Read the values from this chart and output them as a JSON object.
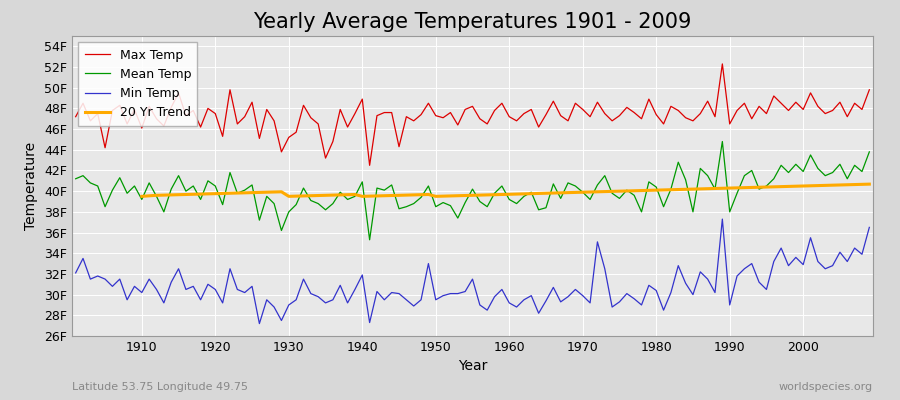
{
  "title": "Yearly Average Temperatures 1901 - 2009",
  "xlabel": "Year",
  "ylabel": "Temperature",
  "year_start": 1901,
  "year_end": 2009,
  "ylim": [
    26,
    55
  ],
  "yticks": [
    26,
    28,
    30,
    32,
    34,
    36,
    38,
    40,
    42,
    44,
    46,
    48,
    50,
    52,
    54
  ],
  "ytick_labels": [
    "26F",
    "28F",
    "30F",
    "32F",
    "34F",
    "36F",
    "38F",
    "40F",
    "42F",
    "44F",
    "46F",
    "48F",
    "50F",
    "52F",
    "54F"
  ],
  "max_temp": [
    47.2,
    48.5,
    46.8,
    47.5,
    44.2,
    47.8,
    48.3,
    46.5,
    47.9,
    46.1,
    48.2,
    47.0,
    46.3,
    48.1,
    49.5,
    47.3,
    47.8,
    46.2,
    48.0,
    47.5,
    45.3,
    49.8,
    46.5,
    47.2,
    48.6,
    45.1,
    47.9,
    46.8,
    43.8,
    45.2,
    45.7,
    48.3,
    47.1,
    46.5,
    43.2,
    44.8,
    47.9,
    46.2,
    47.5,
    48.9,
    42.5,
    47.3,
    47.6,
    47.6,
    44.3,
    47.2,
    46.8,
    47.4,
    48.5,
    47.3,
    47.1,
    47.6,
    46.4,
    47.9,
    48.2,
    47.0,
    46.5,
    47.8,
    48.5,
    47.2,
    46.8,
    47.5,
    47.9,
    46.2,
    47.4,
    48.7,
    47.3,
    46.8,
    48.5,
    47.9,
    47.2,
    48.6,
    47.5,
    46.8,
    47.3,
    48.1,
    47.6,
    47.0,
    48.9,
    47.4,
    46.5,
    48.2,
    47.8,
    47.1,
    46.8,
    47.5,
    48.7,
    47.2,
    52.3,
    46.5,
    47.8,
    48.5,
    47.0,
    48.2,
    47.5,
    49.2,
    48.5,
    47.8,
    48.6,
    47.9,
    49.5,
    48.2,
    47.5,
    47.8,
    48.6,
    47.2,
    48.5,
    47.9,
    49.8
  ],
  "mean_temp": [
    41.2,
    41.5,
    40.8,
    40.5,
    38.5,
    40.1,
    41.3,
    39.8,
    40.5,
    39.2,
    40.8,
    39.5,
    38.0,
    40.2,
    41.5,
    40.0,
    40.5,
    39.2,
    41.0,
    40.5,
    38.7,
    41.8,
    39.8,
    40.1,
    40.6,
    37.2,
    39.5,
    38.8,
    36.2,
    38.0,
    38.7,
    40.3,
    39.1,
    38.8,
    38.2,
    38.8,
    39.9,
    39.2,
    39.5,
    40.9,
    35.3,
    40.3,
    40.1,
    40.6,
    38.3,
    38.5,
    38.8,
    39.4,
    40.5,
    38.5,
    38.9,
    38.6,
    37.4,
    38.9,
    40.2,
    39.0,
    38.5,
    39.8,
    40.5,
    39.2,
    38.8,
    39.5,
    39.9,
    38.2,
    38.4,
    40.7,
    39.3,
    40.8,
    40.5,
    39.9,
    39.2,
    40.6,
    41.5,
    39.8,
    39.3,
    40.1,
    39.6,
    38.0,
    40.9,
    40.4,
    38.5,
    40.2,
    42.8,
    41.1,
    38.0,
    42.2,
    41.5,
    40.2,
    44.8,
    38.0,
    39.8,
    41.5,
    42.0,
    40.2,
    40.5,
    41.2,
    42.5,
    41.8,
    42.6,
    41.9,
    43.5,
    42.2,
    41.5,
    41.8,
    42.6,
    41.2,
    42.5,
    41.9,
    43.8
  ],
  "min_temp": [
    32.1,
    33.5,
    31.5,
    31.8,
    31.5,
    30.8,
    31.5,
    29.5,
    30.8,
    30.2,
    31.5,
    30.5,
    29.2,
    31.2,
    32.5,
    30.5,
    30.8,
    29.5,
    31.0,
    30.5,
    29.2,
    32.5,
    30.5,
    30.2,
    30.8,
    27.2,
    29.5,
    28.8,
    27.5,
    29.0,
    29.5,
    31.5,
    30.1,
    29.8,
    29.2,
    29.5,
    30.9,
    29.2,
    30.5,
    31.9,
    27.3,
    30.3,
    29.5,
    30.2,
    30.1,
    29.5,
    28.9,
    29.5,
    33.0,
    29.5,
    29.9,
    30.1,
    30.1,
    30.3,
    31.5,
    29.0,
    28.5,
    29.8,
    30.5,
    29.2,
    28.8,
    29.5,
    29.9,
    28.2,
    29.4,
    30.7,
    29.3,
    29.8,
    30.5,
    29.9,
    29.2,
    35.1,
    32.5,
    28.8,
    29.3,
    30.1,
    29.6,
    29.0,
    30.9,
    30.4,
    28.5,
    30.2,
    32.8,
    31.1,
    30.0,
    32.2,
    31.5,
    30.2,
    37.3,
    29.0,
    31.8,
    32.5,
    33.0,
    31.2,
    30.5,
    33.2,
    34.5,
    32.8,
    33.6,
    32.9,
    35.5,
    33.2,
    32.5,
    32.8,
    34.1,
    33.2,
    34.5,
    33.9,
    36.5
  ],
  "trend_years": [
    1901,
    1902,
    1903,
    1904,
    1905,
    1906,
    1907,
    1908,
    1909,
    1910,
    1911,
    1912,
    1913,
    1914,
    1915,
    1916,
    1917,
    1918,
    1919,
    1920,
    1921,
    1922,
    1923,
    1924,
    1925,
    1926,
    1927,
    1928,
    1929,
    1930,
    1931,
    1932,
    1933,
    1934,
    1935,
    1936,
    1937,
    1938,
    1939,
    1940,
    1941,
    1942,
    1943,
    1944,
    1945,
    1946,
    1947,
    1948,
    1949,
    1950,
    1951,
    1952,
    1953,
    1954,
    1955,
    1956,
    1957,
    1958,
    1959,
    1960,
    1961,
    1962,
    1963,
    1964,
    1965,
    1966,
    1967,
    1968,
    1969,
    1970,
    1971,
    1972,
    1973,
    1974,
    1975,
    1976,
    1977,
    1978,
    1979,
    1980,
    1981,
    1982,
    1983,
    1984,
    1985,
    1986,
    1987,
    1988,
    1989,
    1990,
    1991,
    1992,
    1993,
    1994,
    1995,
    1996,
    1997,
    1998,
    1999,
    2000,
    2001,
    2002,
    2003,
    2004,
    2005,
    2006,
    2007,
    2008,
    2009
  ],
  "trend_vals": [
    null,
    null,
    null,
    null,
    null,
    null,
    null,
    null,
    null,
    39.5,
    39.55,
    39.6,
    39.62,
    39.64,
    39.66,
    39.68,
    39.7,
    39.72,
    39.74,
    39.76,
    39.78,
    39.8,
    39.82,
    39.84,
    39.86,
    39.88,
    39.9,
    39.92,
    39.94,
    39.5,
    39.52,
    39.54,
    39.56,
    39.58,
    39.6,
    39.62,
    39.64,
    39.66,
    39.68,
    39.5,
    39.52,
    39.54,
    39.56,
    39.58,
    39.6,
    39.62,
    39.64,
    39.66,
    39.68,
    39.5,
    39.52,
    39.54,
    39.56,
    39.58,
    39.6,
    39.62,
    39.64,
    39.66,
    39.68,
    39.7,
    39.72,
    39.74,
    39.76,
    39.78,
    39.8,
    39.82,
    39.84,
    39.86,
    39.88,
    39.9,
    39.92,
    39.94,
    39.96,
    39.98,
    40.0,
    40.02,
    40.04,
    40.06,
    40.08,
    40.1,
    40.12,
    40.14,
    40.16,
    40.18,
    40.2,
    40.22,
    40.24,
    40.26,
    40.28,
    40.3,
    40.32,
    40.34,
    40.36,
    40.38,
    40.4,
    40.42,
    40.44,
    40.46,
    40.48,
    40.5,
    40.52,
    40.54,
    40.56,
    40.58,
    40.6,
    40.62,
    40.64,
    40.66,
    40.68
  ],
  "fig_bg_color": "#d8d8d8",
  "plot_bg_color": "#e8e8e8",
  "grid_color": "#ffffff",
  "max_color": "#dd0000",
  "mean_color": "#009900",
  "min_color": "#3333cc",
  "trend_color": "#ffaa00",
  "legend_loc": "upper left",
  "subtitle_left": "Latitude 53.75 Longitude 49.75",
  "subtitle_right": "worldspecies.org",
  "xticks": [
    1910,
    1920,
    1930,
    1940,
    1950,
    1960,
    1970,
    1980,
    1990,
    2000
  ],
  "title_fontsize": 15,
  "axis_label_fontsize": 10,
  "tick_fontsize": 9,
  "legend_fontsize": 9
}
